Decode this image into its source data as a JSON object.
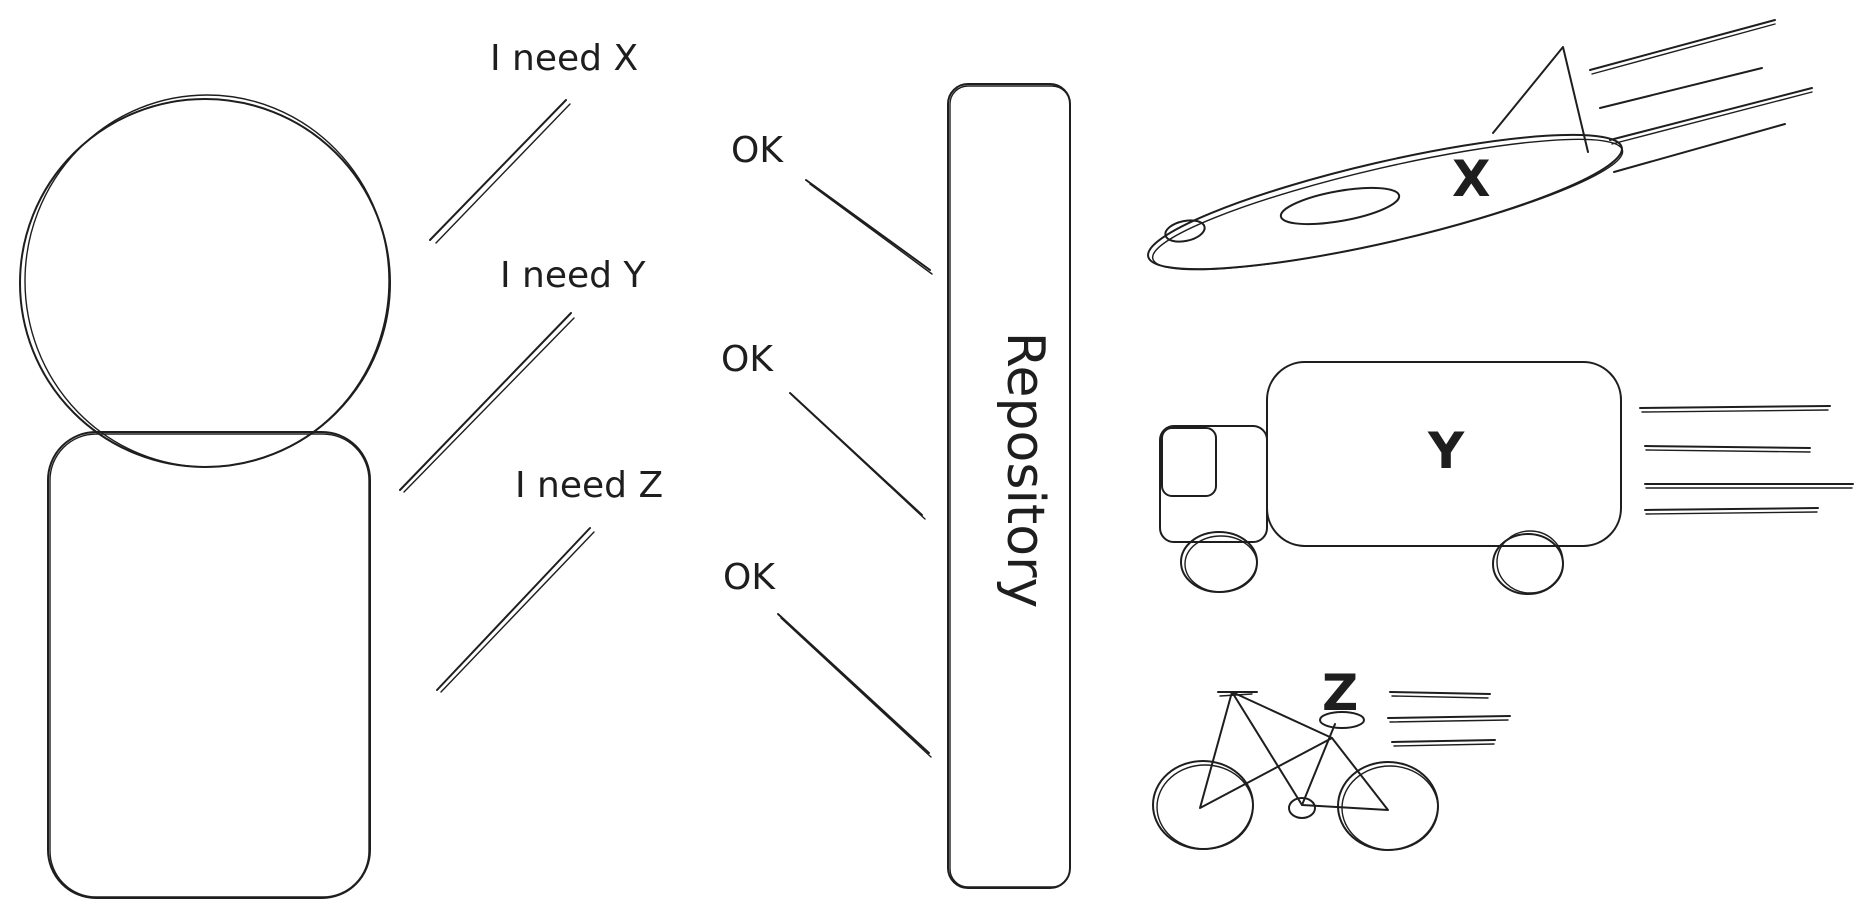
{
  "requests": {
    "x": "I need X",
    "y": "I need Y",
    "z": "I need Z"
  },
  "responses": {
    "x": "OK",
    "y": "OK",
    "z": "OK"
  },
  "repository": {
    "label": "Repository"
  },
  "vehicles": {
    "airplane_label": "X",
    "truck_label": "Y",
    "bicycle_label": "Z"
  },
  "colors": {
    "stroke": "#1e1e1e",
    "background": "#ffffff"
  }
}
